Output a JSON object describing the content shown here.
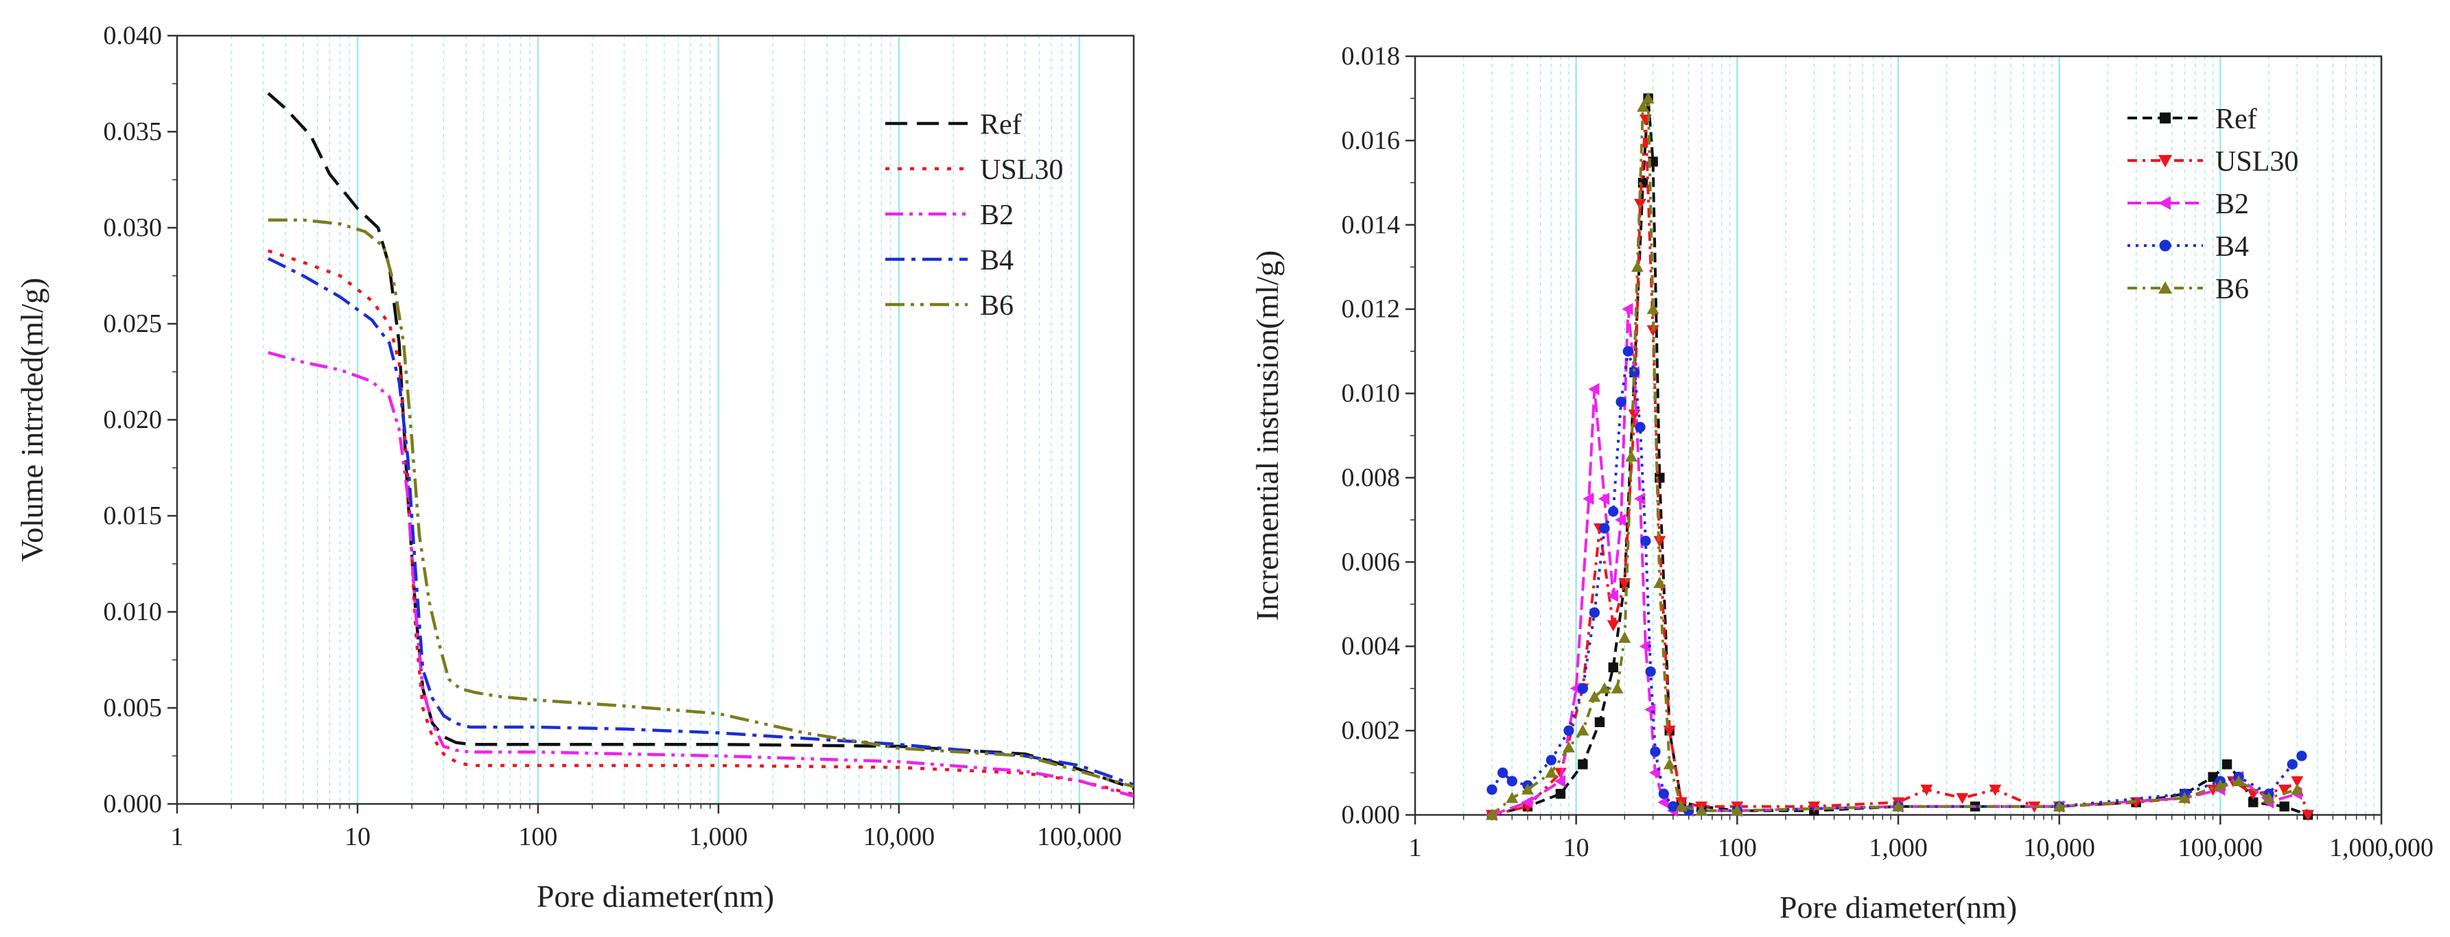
{
  "colors": {
    "Ref": "#111111",
    "USL30": "#f0141e",
    "B2": "#ee22ee",
    "B4": "#1a2fd6",
    "B6": "#7c7c1c",
    "grid": "#9fe8ee",
    "axis": "#333333"
  },
  "chart_data": [
    {
      "type": "line",
      "x_scale": "log",
      "title": "",
      "xlabel": "Pore diameter(nm)",
      "ylabel": "Volume intrrded(ml/g)",
      "xlim": [
        1,
        200000
      ],
      "ylim": [
        0,
        0.04
      ],
      "xticks": [
        {
          "value": 1,
          "label": "1"
        },
        {
          "value": 10,
          "label": "10"
        },
        {
          "value": 100,
          "label": "100"
        },
        {
          "value": 1000,
          "label": "1,000"
        },
        {
          "value": 10000,
          "label": "10,000"
        },
        {
          "value": 100000,
          "label": "100,000"
        }
      ],
      "yticks": [
        {
          "value": 0,
          "label": "0.000"
        },
        {
          "value": 0.005,
          "label": "0.005"
        },
        {
          "value": 0.01,
          "label": "0.010"
        },
        {
          "value": 0.015,
          "label": "0.015"
        },
        {
          "value": 0.02,
          "label": "0.020"
        },
        {
          "value": 0.025,
          "label": "0.025"
        },
        {
          "value": 0.03,
          "label": "0.030"
        },
        {
          "value": 0.035,
          "label": "0.035"
        },
        {
          "value": 0.04,
          "label": "0.040"
        }
      ],
      "grid": "vertical",
      "legend_position": "top-right",
      "series": [
        {
          "name": "Ref",
          "x": [
            3.2,
            4,
            5.5,
            7,
            10,
            13,
            15,
            17,
            19,
            21,
            23,
            26,
            30,
            35,
            42,
            60,
            100,
            1000,
            10000,
            50000,
            100000,
            200000
          ],
          "y": [
            0.037,
            0.0362,
            0.0348,
            0.0328,
            0.031,
            0.03,
            0.028,
            0.024,
            0.016,
            0.01,
            0.006,
            0.0042,
            0.0035,
            0.0032,
            0.0031,
            0.0031,
            0.0031,
            0.0031,
            0.003,
            0.0026,
            0.0018,
            0.0008
          ]
        },
        {
          "name": "USL30",
          "x": [
            3.2,
            5,
            8,
            12,
            15,
            17,
            19,
            21,
            23,
            26,
            30,
            35,
            42,
            60,
            100,
            1000,
            10000,
            50000,
            100000,
            200000
          ],
          "y": [
            0.0288,
            0.0282,
            0.0275,
            0.0262,
            0.025,
            0.023,
            0.017,
            0.009,
            0.005,
            0.0035,
            0.0026,
            0.0022,
            0.002,
            0.002,
            0.002,
            0.002,
            0.0019,
            0.0016,
            0.0012,
            0.0005
          ]
        },
        {
          "name": "B2",
          "x": [
            3.2,
            5,
            8,
            12,
            15,
            17,
            19,
            21,
            23,
            26,
            30,
            35,
            42,
            60,
            100,
            1000,
            10000,
            50000,
            100000,
            200000
          ],
          "y": [
            0.0235,
            0.023,
            0.0226,
            0.022,
            0.0212,
            0.0195,
            0.016,
            0.01,
            0.006,
            0.0042,
            0.003,
            0.0028,
            0.0027,
            0.0027,
            0.0027,
            0.0025,
            0.0022,
            0.0017,
            0.0012,
            0.0004
          ]
        },
        {
          "name": "B4",
          "x": [
            3.2,
            5,
            8,
            12,
            15,
            17,
            19,
            21,
            23,
            26,
            30,
            35,
            42,
            60,
            100,
            300,
            1000,
            10000,
            50000,
            100000,
            200000
          ],
          "y": [
            0.0284,
            0.0275,
            0.0264,
            0.0252,
            0.024,
            0.022,
            0.018,
            0.012,
            0.007,
            0.0055,
            0.0046,
            0.0042,
            0.004,
            0.004,
            0.004,
            0.0039,
            0.0037,
            0.0031,
            0.0025,
            0.002,
            0.001
          ]
        },
        {
          "name": "B6",
          "x": [
            3.2,
            5,
            8,
            11,
            14,
            16,
            18,
            20,
            22,
            25,
            28,
            32,
            37,
            45,
            60,
            100,
            300,
            1000,
            3000,
            10000,
            50000,
            100000,
            200000
          ],
          "y": [
            0.0304,
            0.0304,
            0.0302,
            0.0298,
            0.029,
            0.027,
            0.024,
            0.019,
            0.014,
            0.0105,
            0.0085,
            0.0065,
            0.006,
            0.0058,
            0.0056,
            0.0054,
            0.0051,
            0.0047,
            0.0037,
            0.0029,
            0.0025,
            0.0017,
            0.0009
          ]
        }
      ]
    },
    {
      "type": "line",
      "x_scale": "log",
      "markers": true,
      "title": "",
      "xlabel": "Pore diameter(nm)",
      "ylabel": "Incremential instrusion(ml/g)",
      "xlim": [
        1,
        1000000
      ],
      "ylim": [
        0,
        0.018
      ],
      "xticks": [
        {
          "value": 1,
          "label": "1"
        },
        {
          "value": 10,
          "label": "10"
        },
        {
          "value": 100,
          "label": "100"
        },
        {
          "value": 1000,
          "label": "1,000"
        },
        {
          "value": 10000,
          "label": "10,000"
        },
        {
          "value": 100000,
          "label": "100,000"
        },
        {
          "value": 1000000,
          "label": "1,000,000"
        }
      ],
      "yticks": [
        {
          "value": 0,
          "label": "0.000"
        },
        {
          "value": 0.002,
          "label": "0.002"
        },
        {
          "value": 0.004,
          "label": "0.004"
        },
        {
          "value": 0.006,
          "label": "0.006"
        },
        {
          "value": 0.008,
          "label": "0.008"
        },
        {
          "value": 0.01,
          "label": "0.010"
        },
        {
          "value": 0.012,
          "label": "0.012"
        },
        {
          "value": 0.014,
          "label": "0.014"
        },
        {
          "value": 0.016,
          "label": "0.016"
        },
        {
          "value": 0.018,
          "label": "0.018"
        }
      ],
      "grid": "vertical",
      "legend_position": "top-right",
      "series": [
        {
          "name": "Ref",
          "marker": "square",
          "x": [
            3,
            5,
            8,
            11,
            14,
            17,
            20,
            23,
            26,
            28,
            30,
            33,
            38,
            45,
            60,
            100,
            300,
            1000,
            3000,
            10000,
            30000,
            60000,
            90000,
            110000,
            130000,
            160000,
            250000,
            350000
          ],
          "y": [
            0,
            0.0002,
            0.0005,
            0.0012,
            0.0022,
            0.0035,
            0.0055,
            0.0105,
            0.015,
            0.017,
            0.0155,
            0.008,
            0.002,
            0.0003,
            0.0002,
            0.0001,
            0.0001,
            0.0002,
            0.0002,
            0.0002,
            0.0003,
            0.0005,
            0.0009,
            0.0012,
            0.0009,
            0.0003,
            0.0002,
            0
          ]
        },
        {
          "name": "USL30",
          "marker": "triangle-down",
          "x": [
            3,
            5,
            8,
            11,
            14,
            17,
            20,
            23,
            25,
            27,
            30,
            33,
            38,
            45,
            60,
            100,
            300,
            1000,
            1500,
            2500,
            4000,
            7000,
            10000,
            30000,
            60000,
            90000,
            120000,
            160000,
            250000,
            300000,
            350000
          ],
          "y": [
            0,
            0.0002,
            0.001,
            0.003,
            0.0068,
            0.0045,
            0.0055,
            0.0095,
            0.0145,
            0.0165,
            0.0115,
            0.0065,
            0.002,
            0.0003,
            0.0002,
            0.0002,
            0.0002,
            0.0003,
            0.0006,
            0.0004,
            0.0006,
            0.0002,
            0.0002,
            0.0003,
            0.0004,
            0.0006,
            0.0008,
            0.0005,
            0.0006,
            0.0008,
            0
          ]
        },
        {
          "name": "B2",
          "marker": "left-triangle",
          "x": [
            3,
            5,
            8,
            10,
            12,
            13,
            15,
            17,
            19,
            21,
            23,
            25,
            27,
            29,
            31,
            35,
            40,
            50,
            100,
            1000,
            10000,
            60000,
            100000,
            130000,
            200000,
            300000
          ],
          "y": [
            0,
            0.0003,
            0.0008,
            0.003,
            0.0075,
            0.0101,
            0.0075,
            0.0052,
            0.007,
            0.012,
            0.0105,
            0.0075,
            0.004,
            0.0025,
            0.001,
            0.0003,
            0.0001,
            0.0001,
            0.0001,
            0.0002,
            0.0002,
            0.0004,
            0.0006,
            0.0009,
            0.0003,
            0.0005
          ]
        },
        {
          "name": "B4",
          "marker": "circle",
          "x": [
            3,
            3.5,
            4,
            5,
            7,
            9,
            11,
            13,
            15,
            17,
            19,
            21,
            23,
            25,
            27,
            29,
            31,
            35,
            40,
            50,
            100,
            1000,
            10000,
            60000,
            100000,
            130000,
            200000,
            280000,
            320000
          ],
          "y": [
            0.0006,
            0.001,
            0.0008,
            0.0007,
            0.0013,
            0.002,
            0.003,
            0.0048,
            0.0068,
            0.0072,
            0.0098,
            0.011,
            0.0105,
            0.0092,
            0.0065,
            0.0034,
            0.0015,
            0.0005,
            0.0002,
            0.0001,
            0.0001,
            0.0002,
            0.0002,
            0.0005,
            0.0008,
            0.0009,
            0.0005,
            0.0012,
            0.0014
          ]
        },
        {
          "name": "B6",
          "marker": "triangle-up",
          "x": [
            3,
            4,
            5,
            7,
            9,
            11,
            13,
            15,
            18,
            20,
            22,
            24,
            26,
            28,
            30,
            33,
            38,
            45,
            60,
            100,
            1000,
            10000,
            60000,
            100000,
            130000,
            200000,
            300000
          ],
          "y": [
            0,
            0.0004,
            0.0006,
            0.001,
            0.0016,
            0.002,
            0.0028,
            0.003,
            0.003,
            0.0042,
            0.0085,
            0.013,
            0.0168,
            0.017,
            0.012,
            0.0055,
            0.0012,
            0.0002,
            0.0001,
            0.0001,
            0.0002,
            0.0002,
            0.0004,
            0.0007,
            0.0008,
            0.0004,
            0.0006
          ]
        }
      ]
    }
  ]
}
